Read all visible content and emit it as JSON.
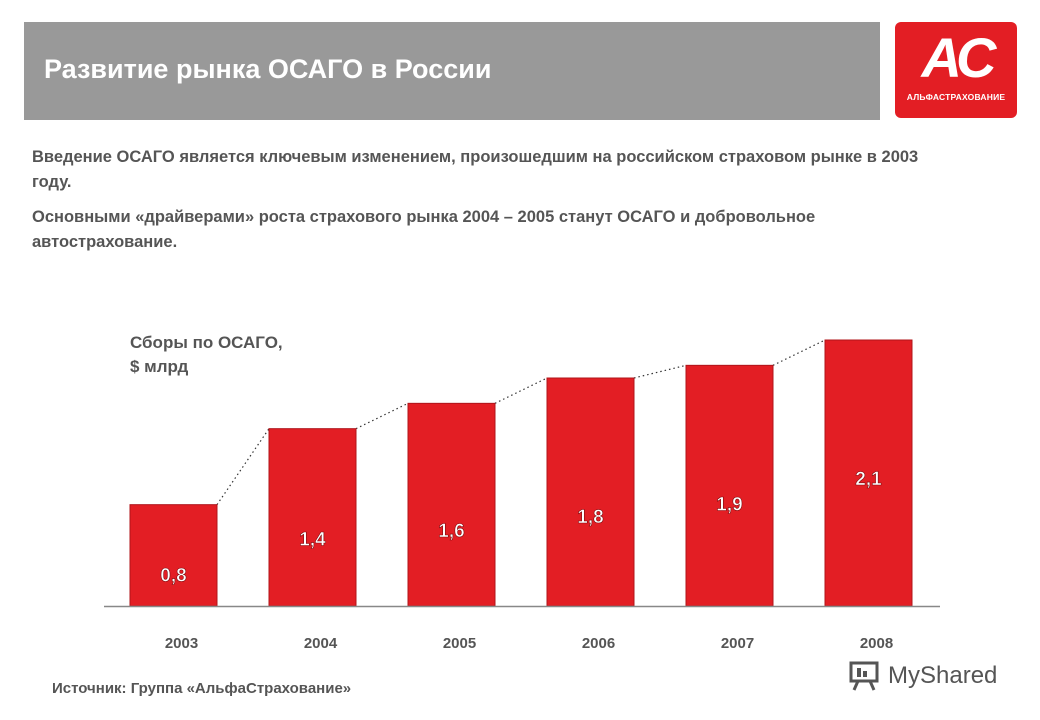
{
  "header": {
    "title": "Развитие рынка ОСАГО в России"
  },
  "logo": {
    "mark": "AC",
    "text": "АЛЬФАСТРАХОВАНИЕ"
  },
  "intro": {
    "paragraph1": "Введение ОСАГО является ключевым изменением, произошедшим на российском страховом рынке  в  2003 году.",
    "paragraph2": "Основными «драйверами» роста страхового рынка 2004 – 2005 станут ОСАГО и добровольное автострахование."
  },
  "colors": {
    "bar": "#e31e24",
    "header": "#999999",
    "text": "#555555"
  },
  "chart_data": {
    "type": "bar",
    "title": "Сборы по ОСАГО,\n$ млрд",
    "categories": [
      "2003",
      "2004",
      "2005",
      "2006",
      "2007",
      "2008"
    ],
    "values": [
      0.8,
      1.4,
      1.6,
      1.8,
      1.9,
      2.1
    ],
    "data_labels": [
      "0,8",
      "1,4",
      "1,6",
      "1,8",
      "1,9",
      "2,1"
    ],
    "ylim": [
      0,
      2.1
    ],
    "grid": false,
    "connector_lines": "dotted",
    "legend": "none"
  },
  "source": "Источник: Группа «АльфаСтрахование»",
  "watermark": {
    "text": "MyShared",
    "icon": "presentation-board-icon"
  }
}
